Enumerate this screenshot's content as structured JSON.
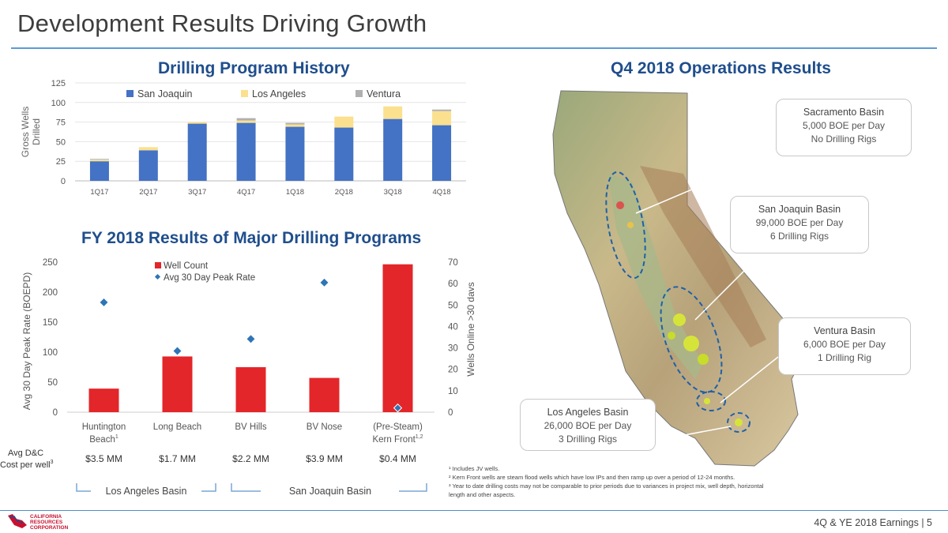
{
  "slide": {
    "title": "Development Results Driving Growth",
    "footer": "4Q & YE 2018 Earnings  |  5",
    "logo_text": [
      "CALIFORNIA",
      "RESOURCES",
      "CORPORATION"
    ]
  },
  "chart_data": [
    {
      "type": "bar",
      "stacked": true,
      "title": "Drilling Program History",
      "ylabel": "Gross Wells Drilled",
      "ylim": [
        0,
        125
      ],
      "yticks": [
        0,
        25,
        50,
        75,
        100,
        125
      ],
      "categories": [
        "1Q17",
        "2Q17",
        "3Q17",
        "4Q17",
        "1Q18",
        "2Q18",
        "3Q18",
        "4Q18"
      ],
      "series": [
        {
          "name": "San Joaquin",
          "color": "#4472c4",
          "values": [
            25,
            39,
            73,
            74,
            69,
            68,
            79,
            71
          ]
        },
        {
          "name": "Los Angeles",
          "color": "#fbe08f",
          "values": [
            2,
            4,
            2,
            3,
            3,
            14,
            16,
            18
          ]
        },
        {
          "name": "Ventura",
          "color": "#b0b0b0",
          "values": [
            1,
            0,
            0,
            3,
            2,
            0,
            0,
            2
          ]
        }
      ]
    },
    {
      "type": "bar",
      "title": "FY 2018 Results of Major Drilling Programs",
      "ylabel": "Avg 30 Day Peak Rate (BOEPD)",
      "ylabel_right": "Wells Online >30 days",
      "ylim": [
        0,
        250
      ],
      "ylim_right": [
        0,
        70
      ],
      "yticks": [
        0,
        50,
        100,
        150,
        200,
        250
      ],
      "yticks_right": [
        0,
        10,
        20,
        30,
        40,
        50,
        60,
        70
      ],
      "categories": [
        {
          "line1": "Huntington",
          "line2": "Beach",
          "sup": "1"
        },
        {
          "line1": "Long Beach",
          "line2": "",
          "sup": ""
        },
        {
          "line1": "BV Hills",
          "line2": "",
          "sup": ""
        },
        {
          "line1": "BV Nose",
          "line2": "",
          "sup": ""
        },
        {
          "line1": "(Pre-Steam)",
          "line2": "Kern Front",
          "sup": "1,2"
        }
      ],
      "series": [
        {
          "name": "Well Count",
          "axis": "right",
          "color": "#e3262a",
          "values": [
            11,
            26,
            21,
            16,
            69
          ]
        },
        {
          "name": "Avg 30 Day Peak Rate",
          "axis": "left",
          "marker": "diamond",
          "color": "#2e75b6",
          "values": [
            183,
            102,
            122,
            216,
            7
          ]
        }
      ],
      "cost_row_label": [
        "Avg D&C",
        "Cost per well"
      ],
      "cost_row_sup": "3",
      "cost_values": [
        "$3.5 MM",
        "$1.7 MM",
        "$2.2 MM",
        "$3.9 MM",
        "$0.4 MM"
      ],
      "basin_groups": [
        "Los Angeles Basin",
        "San Joaquin Basin"
      ]
    }
  ],
  "map": {
    "title": "Q4 2018 Operations Results",
    "callouts": [
      {
        "name": "Sacramento Basin",
        "line1": "5,000 BOE per Day",
        "line2": "No Drilling Rigs"
      },
      {
        "name": "San Joaquin Basin",
        "line1": "99,000 BOE per Day",
        "line2": "6 Drilling Rigs"
      },
      {
        "name": "Ventura Basin",
        "line1": "6,000 BOE per Day",
        "line2": "1 Drilling Rig"
      },
      {
        "name": "Los Angeles Basin",
        "line1": "26,000 BOE per Day",
        "line2": "3 Drilling Rigs"
      }
    ]
  },
  "footnotes": [
    "¹ Includes JV wells.",
    "² Kern Front wells are steam flood wells which have low IPs and then ramp up over a period of 12-24 months.",
    "³ Year to date drilling costs may not be comparable to prior periods due to variances in project mix, well depth, horizontal length and other aspects."
  ]
}
